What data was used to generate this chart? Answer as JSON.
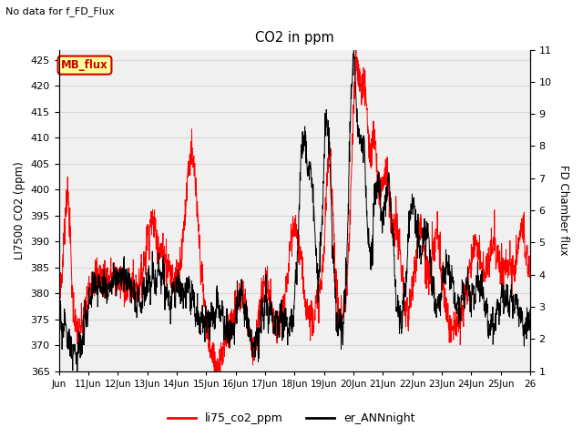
{
  "title": "CO2 in ppm",
  "top_left_text": "No data for f_FD_Flux",
  "ylabel_left": "LI7500 CO2 (ppm)",
  "ylabel_right": "FD Chamber flux",
  "ylim_left": [
    365,
    427
  ],
  "ylim_right": [
    1.0,
    11.0
  ],
  "yticks_left": [
    365,
    370,
    375,
    380,
    385,
    390,
    395,
    400,
    405,
    410,
    415,
    420,
    425
  ],
  "yticks_right": [
    1.0,
    2.0,
    3.0,
    4.0,
    5.0,
    6.0,
    7.0,
    8.0,
    9.0,
    10.0,
    11.0
  ],
  "xtick_labels": [
    "Jun",
    "11Jun",
    "12Jun",
    "13Jun",
    "14Jun",
    "15Jun",
    "16Jun",
    "17Jun",
    "18Jun",
    "19Jun",
    "20Jun",
    "21Jun",
    "22Jun",
    "23Jun",
    "24Jun",
    "25Jun",
    "26"
  ],
  "legend_labels": [
    "li75_co2_ppm",
    "er_ANNnight"
  ],
  "legend_colors": [
    "red",
    "black"
  ],
  "line1_color": "red",
  "line2_color": "black",
  "mb_flux_box_color": "#ffff99",
  "mb_flux_border_color": "#cc0000",
  "mb_flux_text_color": "#cc0000",
  "grid_color": "#d8d8d8",
  "background_color": "#f0f0f0"
}
